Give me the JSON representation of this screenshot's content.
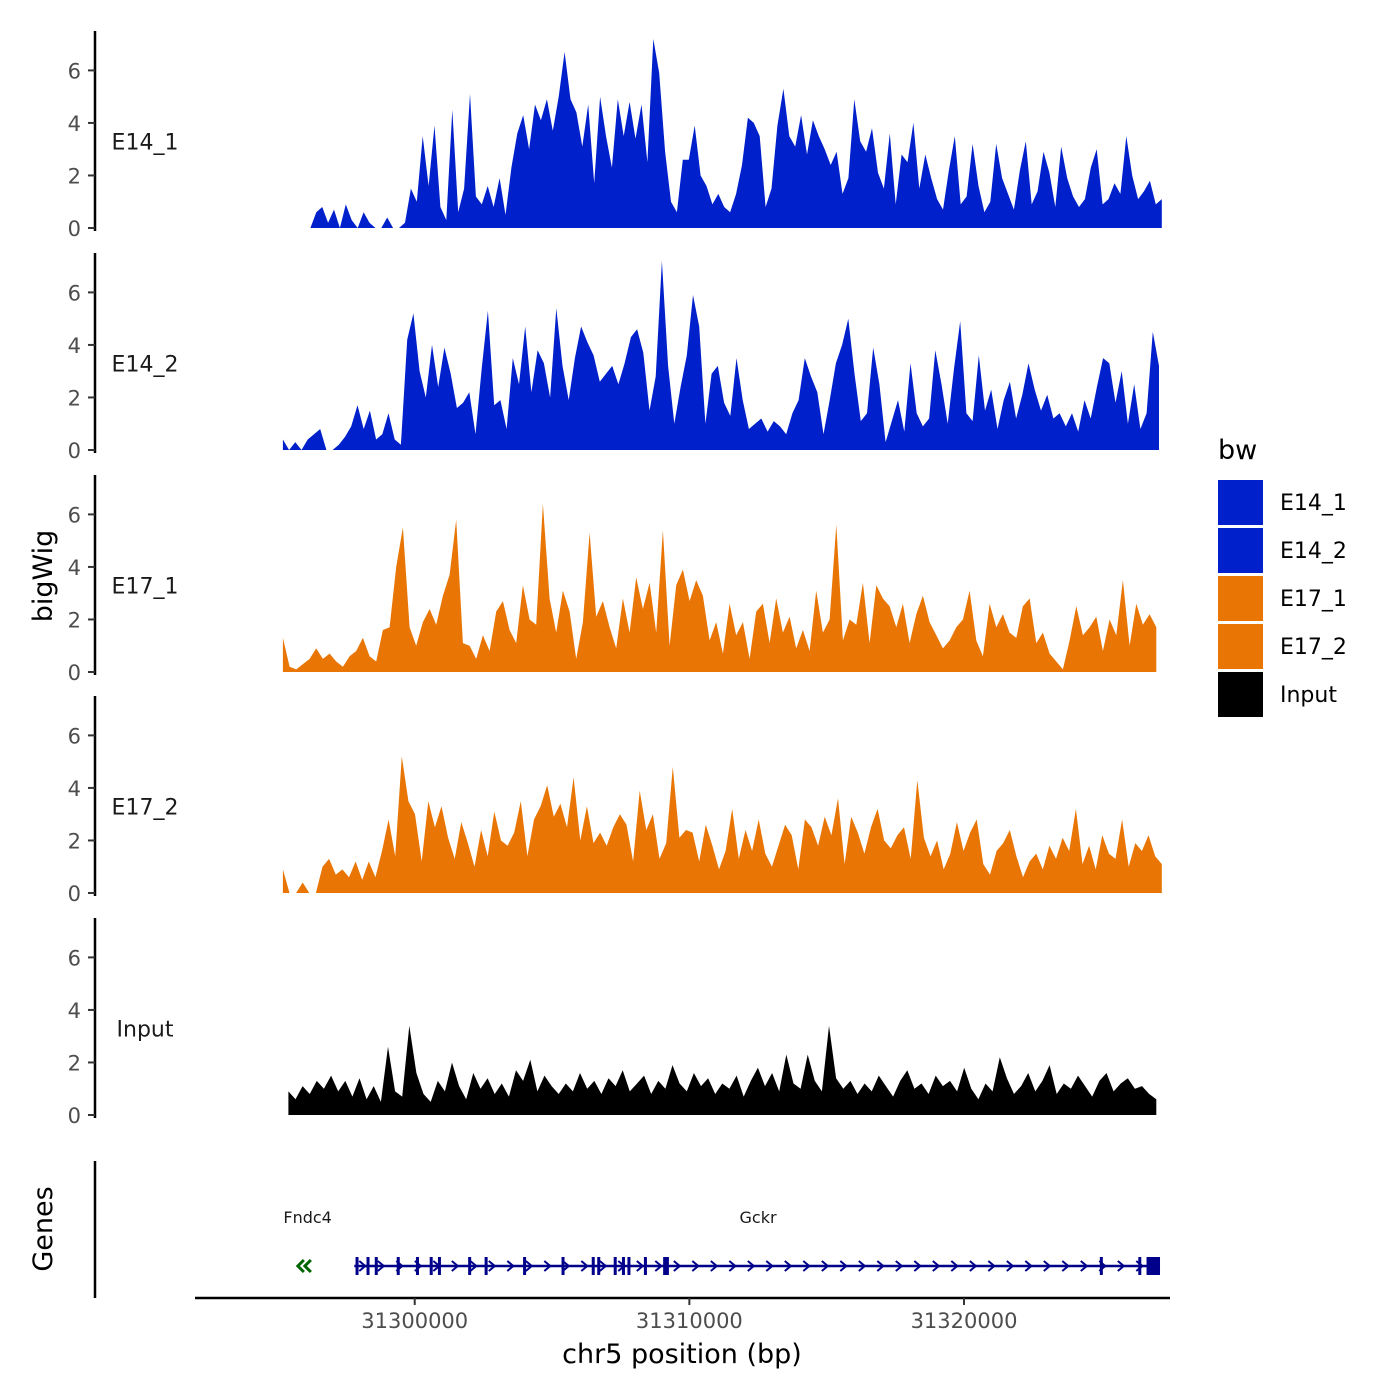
{
  "chart_data": {
    "type": "area",
    "ylabel": "bigWig",
    "xlabel": "chr5 position (bp)",
    "xlim": [
      31292000,
      31327500
    ],
    "ylim": [
      0,
      7.5
    ],
    "y_ticks": [
      0,
      2,
      4,
      6
    ],
    "x_ticks": [
      31300000,
      31310000,
      31320000
    ],
    "x_tick_labels": [
      "31300000",
      "31310000",
      "31320000"
    ],
    "legend": {
      "title": "bw",
      "position": "right",
      "entries": [
        {
          "label": "E14_1",
          "color": "#0020CC"
        },
        {
          "label": "E14_2",
          "color": "#0020CC"
        },
        {
          "label": "E17_1",
          "color": "#E87504"
        },
        {
          "label": "E17_2",
          "color": "#E87504"
        },
        {
          "label": "Input",
          "color": "#000000"
        }
      ]
    },
    "series": [
      {
        "name": "E14_1",
        "color": "#0020CC",
        "x_start": 31296200,
        "x_end": 31327200,
        "start_zero": true,
        "values": [
          0,
          0.6,
          0.8,
          0.2,
          0.7,
          0,
          0.9,
          0.3,
          0,
          0.6,
          0.2,
          0,
          0,
          0.4,
          0,
          0,
          0.2,
          1.5,
          1.0,
          3.5,
          1.6,
          3.9,
          0.8,
          0.3,
          4.5,
          0.6,
          1.5,
          5.1,
          1.2,
          0.9,
          1.6,
          0.8,
          1.9,
          0.5,
          2.3,
          3.6,
          4.3,
          3.0,
          4.7,
          4.1,
          4.9,
          3.7,
          5.0,
          6.7,
          4.9,
          4.4,
          3.1,
          4.7,
          1.7,
          5.0,
          3.5,
          2.3,
          4.9,
          3.5,
          4.8,
          3.4,
          4.7,
          2.5,
          7.2,
          5.9,
          2.9,
          1.0,
          0.6,
          2.6,
          2.6,
          3.9,
          2.0,
          1.6,
          0.9,
          1.3,
          0.8,
          0.6,
          1.3,
          2.4,
          4.2,
          4.0,
          3.5,
          0.8,
          1.5,
          3.9,
          5.3,
          3.5,
          3.1,
          4.3,
          2.8,
          4.1,
          3.5,
          3.0,
          2.4,
          2.9,
          1.3,
          1.9,
          4.9,
          3.3,
          2.9,
          3.8,
          2.1,
          1.5,
          3.6,
          0.9,
          2.8,
          2.5,
          4.0,
          1.5,
          2.8,
          1.9,
          1.1,
          0.7,
          2.2,
          3.5,
          0.9,
          1.2,
          3.2,
          1.6,
          0.6,
          1.0,
          3.2,
          1.9,
          1.3,
          0.7,
          2.2,
          3.3,
          0.9,
          1.4,
          2.9,
          2.1,
          0.8,
          3.1,
          1.9,
          1.2,
          0.8,
          1.1,
          2.3,
          3.0,
          0.9,
          1.1,
          1.7,
          1.3,
          3.5,
          2.0,
          1.1,
          1.4,
          1.8,
          0.9,
          1.1
        ]
      },
      {
        "name": "E14_2",
        "color": "#0020CC",
        "x_start": 31295200,
        "x_end": 31327100,
        "start_zero": false,
        "values": [
          0.4,
          0,
          0.3,
          0,
          0.4,
          0.6,
          0.8,
          0,
          0,
          0.2,
          0.5,
          0.9,
          1.7,
          0.8,
          1.5,
          0.4,
          0.6,
          1.4,
          0.4,
          0.2,
          4.2,
          5.2,
          3.0,
          2.0,
          4.0,
          2.4,
          3.9,
          2.9,
          1.6,
          1.8,
          2.2,
          0.6,
          3.1,
          5.3,
          1.7,
          1.9,
          0.8,
          3.5,
          2.5,
          4.7,
          2.2,
          3.8,
          3.3,
          2.0,
          5.4,
          3.2,
          1.9,
          3.5,
          4.7,
          4.1,
          3.6,
          2.6,
          2.9,
          3.2,
          2.5,
          3.3,
          4.3,
          4.6,
          3.7,
          1.5,
          2.8,
          7.2,
          3.2,
          1.0,
          2.4,
          3.6,
          5.9,
          4.7,
          1.0,
          2.9,
          3.2,
          1.8,
          1.3,
          3.5,
          1.9,
          0.8,
          1.0,
          1.2,
          0.7,
          1.1,
          0.9,
          0.6,
          1.4,
          1.9,
          3.5,
          2.8,
          2.2,
          0.6,
          1.9,
          3.3,
          4.0,
          5.0,
          2.9,
          1.1,
          1.4,
          3.9,
          2.5,
          0.3,
          1.1,
          1.9,
          0.7,
          3.3,
          1.4,
          0.9,
          1.2,
          3.8,
          2.5,
          1.0,
          3.1,
          4.9,
          1.4,
          1.1,
          3.6,
          1.5,
          2.3,
          0.8,
          1.9,
          2.6,
          1.2,
          2.1,
          3.3,
          2.3,
          1.5,
          2.1,
          1.2,
          1.4,
          0.9,
          1.4,
          0.7,
          1.9,
          1.2,
          2.4,
          3.5,
          3.3,
          1.8,
          3.0,
          1.0,
          2.5,
          0.8,
          1.4,
          4.5,
          3.2
        ]
      },
      {
        "name": "E17_1",
        "color": "#E87504",
        "x_start": 31295200,
        "x_end": 31327000,
        "start_zero": false,
        "values": [
          1.3,
          0.2,
          0.1,
          0.3,
          0.5,
          0.9,
          0.5,
          0.7,
          0.4,
          0.2,
          0.6,
          0.8,
          1.3,
          0.6,
          0.4,
          1.6,
          1.7,
          4.0,
          5.5,
          1.7,
          1.0,
          1.9,
          2.4,
          1.8,
          2.9,
          3.7,
          5.8,
          1.1,
          1.0,
          0.5,
          1.4,
          0.8,
          2.3,
          2.7,
          1.6,
          1.1,
          3.3,
          2.0,
          1.8,
          6.4,
          2.8,
          1.5,
          3.1,
          2.3,
          0.5,
          1.9,
          5.3,
          2.1,
          2.7,
          1.7,
          0.9,
          2.8,
          1.5,
          3.6,
          2.4,
          3.4,
          1.5,
          5.4,
          1.0,
          3.3,
          3.9,
          2.7,
          3.5,
          2.9,
          1.2,
          1.9,
          0.7,
          2.6,
          1.4,
          1.9,
          0.5,
          2.3,
          2.6,
          1.1,
          2.8,
          1.5,
          2.1,
          0.9,
          1.6,
          0.8,
          3.1,
          1.5,
          2.0,
          5.6,
          1.2,
          2.0,
          1.8,
          3.4,
          1.1,
          3.3,
          2.8,
          2.5,
          1.7,
          2.6,
          1.1,
          2.2,
          2.9,
          1.9,
          1.4,
          0.9,
          1.2,
          1.7,
          2.0,
          3.1,
          1.2,
          0.6,
          2.6,
          1.7,
          2.2,
          1.5,
          1.3,
          2.5,
          2.8,
          1.1,
          1.5,
          0.7,
          0.4,
          0.1,
          1.2,
          2.5,
          1.4,
          1.7,
          2.1,
          0.8,
          2.0,
          1.4,
          3.5,
          1.0,
          2.6,
          1.8,
          2.2,
          1.7
        ]
      },
      {
        "name": "E17_2",
        "color": "#E87504",
        "x_start": 31295200,
        "x_end": 31327200,
        "start_zero": false,
        "values": [
          0.9,
          0,
          0,
          0.4,
          0,
          0,
          1.0,
          1.3,
          0.7,
          0.9,
          0.6,
          1.2,
          0.5,
          1.2,
          0.6,
          1.6,
          2.8,
          1.4,
          5.2,
          3.5,
          3.0,
          1.2,
          3.5,
          2.5,
          3.3,
          2.1,
          1.3,
          2.7,
          1.9,
          1.0,
          2.4,
          1.4,
          3.1,
          2.0,
          1.8,
          2.3,
          3.5,
          1.4,
          2.8,
          3.3,
          4.1,
          2.9,
          3.4,
          2.5,
          4.4,
          2.0,
          3.3,
          1.9,
          2.3,
          1.8,
          2.5,
          3.0,
          2.6,
          1.2,
          3.9,
          2.4,
          3.0,
          1.3,
          1.9,
          4.8,
          2.1,
          2.4,
          2.3,
          1.2,
          2.6,
          1.8,
          0.9,
          1.6,
          3.2,
          1.3,
          2.4,
          1.6,
          2.8,
          1.5,
          1.0,
          1.8,
          2.6,
          2.2,
          0.9,
          2.8,
          2.5,
          1.8,
          2.9,
          2.2,
          3.6,
          1.1,
          2.9,
          2.3,
          1.5,
          2.5,
          3.2,
          2.0,
          1.7,
          2.2,
          2.5,
          1.3,
          4.3,
          2.1,
          1.4,
          2.0,
          0.9,
          1.5,
          2.7,
          1.6,
          2.3,
          2.8,
          1.1,
          0.7,
          1.6,
          1.9,
          2.4,
          1.4,
          0.6,
          1.2,
          1.5,
          0.9,
          1.8,
          1.3,
          2.1,
          1.6,
          3.2,
          1.1,
          1.8,
          0.9,
          2.2,
          1.5,
          1.3,
          2.8,
          1.0,
          1.9,
          1.6,
          2.2,
          1.4,
          1.1
        ]
      },
      {
        "name": "Input",
        "color": "#000000",
        "x_start": 31295400,
        "x_end": 31327000,
        "start_zero": false,
        "values": [
          0.9,
          0.6,
          1.1,
          0.8,
          1.3,
          1.0,
          1.5,
          0.9,
          1.3,
          0.7,
          1.4,
          0.6,
          1.1,
          0.5,
          2.6,
          0.9,
          0.7,
          3.4,
          1.6,
          0.8,
          0.5,
          1.3,
          0.9,
          2.0,
          1.1,
          0.6,
          1.6,
          1.0,
          1.4,
          0.8,
          1.2,
          0.7,
          1.7,
          1.3,
          2.1,
          0.9,
          1.5,
          1.1,
          0.8,
          1.2,
          0.9,
          1.6,
          1.0,
          1.3,
          0.8,
          1.4,
          1.1,
          1.7,
          0.9,
          1.2,
          1.5,
          0.8,
          1.3,
          1.0,
          1.9,
          1.2,
          0.9,
          1.6,
          1.1,
          1.4,
          0.8,
          1.2,
          1.0,
          1.5,
          0.7,
          1.3,
          1.8,
          1.1,
          1.6,
          0.9,
          2.3,
          1.2,
          1.0,
          2.3,
          1.3,
          0.9,
          3.4,
          1.4,
          1.0,
          1.3,
          0.8,
          1.2,
          0.9,
          1.5,
          1.1,
          0.7,
          1.3,
          1.7,
          1.0,
          1.2,
          0.8,
          1.5,
          1.1,
          1.3,
          0.9,
          1.8,
          1.0,
          0.6,
          1.2,
          0.9,
          2.2,
          1.4,
          0.8,
          1.1,
          1.6,
          0.9,
          1.3,
          1.9,
          0.8,
          1.2,
          1.0,
          1.5,
          1.1,
          0.7,
          1.3,
          1.6,
          0.9,
          1.2,
          1.4,
          1.0,
          1.1,
          0.8,
          0.6
        ]
      }
    ]
  },
  "genes_panel": {
    "label": "Genes",
    "genes": [
      {
        "name": "Fndc4",
        "strand": "-",
        "label_pos": 31296100,
        "color": "#006400",
        "start": 31295600,
        "end": 31296000
      },
      {
        "name": "Gckr",
        "strand": "+",
        "label_pos": 31312500,
        "color": "#00008B",
        "start": 31297800,
        "end": 31327100,
        "exons": [
          31297900,
          31298300,
          31298600,
          31299400,
          31300100,
          31300600,
          31300900,
          31302000,
          31302600,
          31304000,
          31305400,
          31306500,
          31306700,
          31307300,
          31307600,
          31307800,
          31308400,
          31309100,
          31309200,
          31325000,
          31326400,
          31326700,
          31327000
        ]
      }
    ]
  }
}
